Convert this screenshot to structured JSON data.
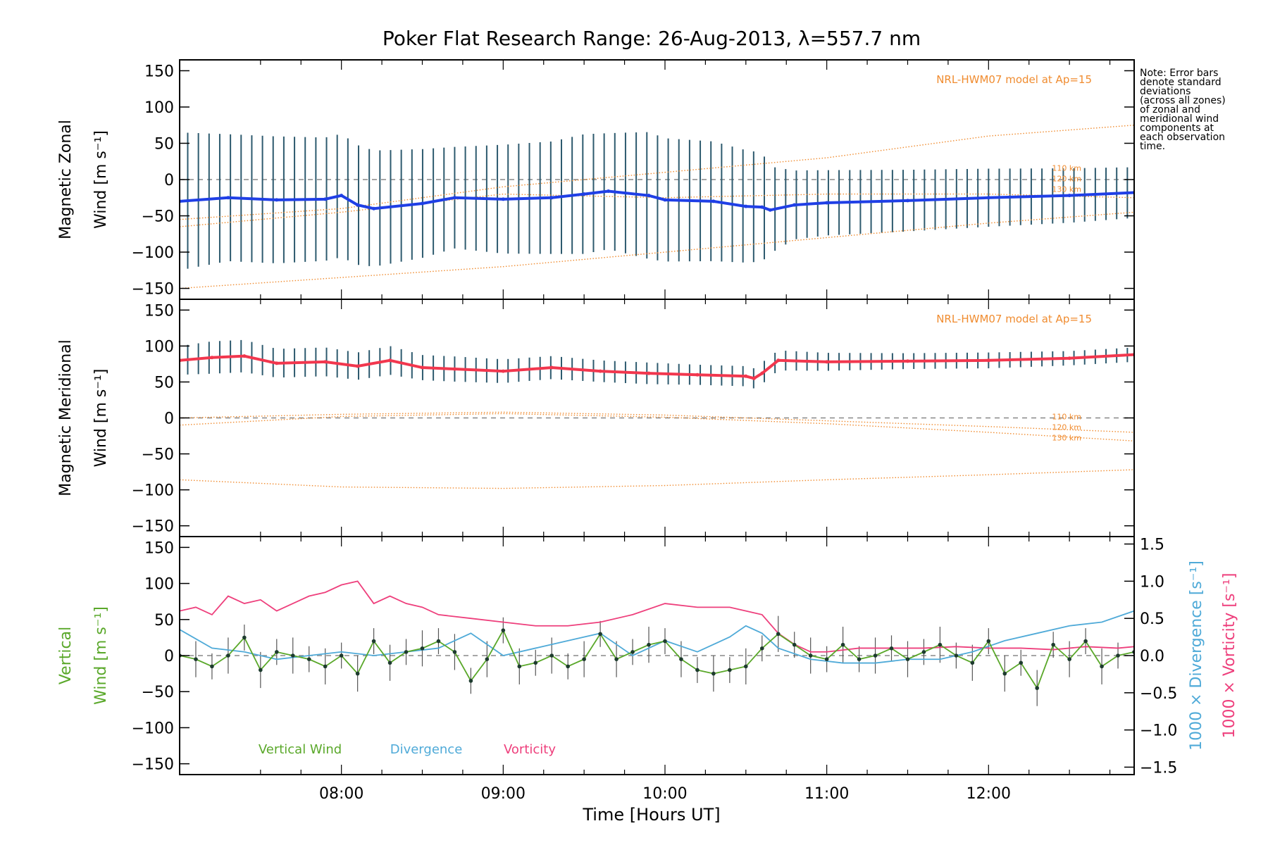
{
  "title": "Poker Flat Research Range: 26-Aug-2013, λ=557.7 nm",
  "note": [
    "Note: Error bars",
    "denote standard",
    "deviations",
    "(across all zones)",
    "of zonal and",
    "meridional wind",
    "components at",
    "each observation",
    "time."
  ],
  "xlabel": "Time [Hours UT]",
  "colors": {
    "zonal": "#1f3fe6",
    "meridional": "#f2374e",
    "vertical": "#5aa82a",
    "divergence": "#4faad8",
    "vorticity": "#ee3f7c",
    "model": "#f08c30",
    "errbar": "#2d5a6e"
  },
  "chart_data": [
    {
      "type": "line",
      "panel": "zonal",
      "ylabel": [
        "Magnetic Zonal",
        "Wind [m s⁻¹]"
      ],
      "ylim": [
        -165,
        165
      ],
      "yticks": [
        "150",
        "100",
        "50",
        "0",
        "−50",
        "−100",
        "−150"
      ],
      "xlim": [
        7.0,
        12.9
      ],
      "xtick_labels": [
        "08:00",
        "09:00",
        "10:00",
        "11:00",
        "12:00"
      ],
      "model_label": "NRL-HWM07 model at Ap=15",
      "model_heights": [
        "110 km",
        "120 km",
        "130 km"
      ],
      "series": [
        {
          "name": "Zonal wind",
          "x": [
            7.0,
            7.3,
            7.6,
            7.9,
            8.0,
            8.1,
            8.2,
            8.5,
            8.7,
            9.0,
            9.3,
            9.5,
            9.65,
            9.9,
            10.0,
            10.3,
            10.5,
            10.6,
            10.65,
            10.8,
            11.0,
            11.5,
            12.0,
            12.5,
            12.9
          ],
          "y": [
            -30,
            -25,
            -28,
            -27,
            -22,
            -35,
            -40,
            -33,
            -25,
            -27,
            -25,
            -20,
            -16,
            -22,
            -28,
            -30,
            -37,
            -38,
            -42,
            -35,
            -32,
            -29,
            -25,
            -22,
            -18
          ],
          "err": [
            190,
            175,
            175,
            170,
            170,
            165,
            160,
            150,
            140,
            150,
            155,
            165,
            160,
            175,
            170,
            165,
            155,
            150,
            120,
            95,
            90,
            85,
            80,
            75,
            70
          ]
        }
      ]
    },
    {
      "type": "line",
      "panel": "meridional",
      "ylabel": [
        "Magnetic Meridional",
        "Wind [m s⁻¹]"
      ],
      "ylim": [
        -165,
        165
      ],
      "yticks": [
        "150",
        "100",
        "50",
        "0",
        "−50",
        "−100",
        "−150"
      ],
      "xlim": [
        7.0,
        12.9
      ],
      "model_label": "NRL-HWM07 model at Ap=15",
      "model_heights": [
        "110 km",
        "120 km",
        "130 km"
      ],
      "series": [
        {
          "name": "Meridional wind",
          "x": [
            7.0,
            7.2,
            7.4,
            7.6,
            7.9,
            8.1,
            8.3,
            8.5,
            8.7,
            9.0,
            9.3,
            9.6,
            9.9,
            10.2,
            10.5,
            10.55,
            10.6,
            10.7,
            11.0,
            11.5,
            12.0,
            12.5,
            12.9
          ],
          "y": [
            80,
            84,
            86,
            76,
            78,
            72,
            80,
            70,
            68,
            65,
            70,
            65,
            62,
            60,
            58,
            55,
            62,
            80,
            78,
            79,
            80,
            83,
            88
          ],
          "err": [
            40,
            45,
            45,
            40,
            40,
            38,
            40,
            35,
            35,
            33,
            32,
            30,
            30,
            28,
            28,
            28,
            30,
            28,
            25,
            22,
            22,
            20,
            20
          ]
        },
        {
          "name": "Model 110 km",
          "x": [
            7.0,
            8.0,
            9.0,
            10.0,
            11.0,
            12.0,
            12.9
          ],
          "y": [
            0,
            5,
            8,
            4,
            -4,
            -12,
            -20
          ]
        },
        {
          "name": "Model 120 km",
          "x": [
            7.0,
            8.0,
            9.0,
            10.0,
            11.0,
            12.0,
            12.9
          ],
          "y": [
            -10,
            2,
            6,
            1,
            -8,
            -20,
            -32
          ]
        },
        {
          "name": "Model 130 km",
          "x": [
            7.0,
            8.0,
            9.0,
            10.0,
            11.0,
            12.0,
            12.9
          ],
          "y": [
            -86,
            -96,
            -98,
            -94,
            -86,
            -79,
            -72
          ]
        }
      ]
    },
    {
      "type": "line",
      "panel": "vertical",
      "ylabel": [
        "Vertical",
        "Wind [m s⁻¹]"
      ],
      "ylim": [
        -165,
        165
      ],
      "yticks": [
        "150",
        "100",
        "50",
        "0",
        "−50",
        "−100",
        "−150"
      ],
      "y2lim": [
        -1.6,
        1.6
      ],
      "y2ticks": [
        "1.5",
        "1.0",
        "0.5",
        "0.0",
        "−0.5",
        "−1.0",
        "−1.5"
      ],
      "y2label_div": "1000 × Divergence [s⁻¹]",
      "y2label_vor": "1000 × Vorticity [s⁻¹]",
      "xlim": [
        7.0,
        12.9
      ],
      "xtick_labels": [
        "08:00",
        "09:00",
        "10:00",
        "11:00",
        "12:00"
      ],
      "legend": [
        "Vertical Wind",
        "Divergence",
        "Vorticity"
      ],
      "series": [
        {
          "name": "Vertical Wind",
          "x": [
            7.0,
            7.1,
            7.2,
            7.3,
            7.4,
            7.5,
            7.6,
            7.7,
            7.8,
            7.9,
            8.0,
            8.1,
            8.2,
            8.3,
            8.4,
            8.5,
            8.6,
            8.7,
            8.8,
            8.9,
            9.0,
            9.1,
            9.2,
            9.3,
            9.4,
            9.5,
            9.6,
            9.7,
            9.8,
            9.9,
            10.0,
            10.1,
            10.2,
            10.3,
            10.4,
            10.5,
            10.6,
            10.7,
            10.8,
            10.9,
            11.0,
            11.1,
            11.2,
            11.3,
            11.4,
            11.5,
            11.6,
            11.7,
            11.8,
            11.9,
            12.0,
            12.1,
            12.2,
            12.3,
            12.4,
            12.5,
            12.6,
            12.7,
            12.8,
            12.9
          ],
          "y": [
            0,
            -5,
            -15,
            0,
            25,
            -20,
            5,
            0,
            -5,
            -15,
            0,
            -25,
            20,
            -10,
            5,
            10,
            20,
            5,
            -35,
            -5,
            35,
            -15,
            -10,
            0,
            -15,
            -5,
            30,
            -5,
            5,
            15,
            20,
            -5,
            -20,
            -25,
            -20,
            -15,
            10,
            30,
            15,
            0,
            -5,
            15,
            -5,
            0,
            10,
            -5,
            5,
            15,
            0,
            -10,
            20,
            -25,
            -10,
            -45,
            15,
            -5,
            20,
            -15,
            0,
            5
          ]
        },
        {
          "name": "Divergence",
          "x": [
            7.0,
            7.2,
            7.4,
            7.6,
            7.8,
            8.0,
            8.2,
            8.4,
            8.6,
            8.8,
            9.0,
            9.2,
            9.4,
            9.6,
            9.8,
            10.0,
            10.2,
            10.4,
            10.5,
            10.6,
            10.7,
            10.9,
            11.1,
            11.3,
            11.5,
            11.7,
            11.9,
            12.1,
            12.3,
            12.5,
            12.7,
            12.9
          ],
          "y": [
            0.35,
            0.1,
            0.05,
            -0.05,
            0.0,
            0.05,
            0.0,
            0.05,
            0.1,
            0.3,
            0.0,
            0.1,
            0.2,
            0.3,
            0.0,
            0.2,
            0.05,
            0.25,
            0.4,
            0.3,
            0.1,
            -0.05,
            -0.1,
            -0.1,
            -0.05,
            -0.05,
            0.05,
            0.2,
            0.3,
            0.4,
            0.45,
            0.6
          ]
        },
        {
          "name": "Vorticity",
          "x": [
            7.0,
            7.1,
            7.2,
            7.3,
            7.4,
            7.5,
            7.6,
            7.7,
            7.8,
            7.9,
            8.0,
            8.1,
            8.2,
            8.3,
            8.4,
            8.5,
            8.6,
            8.8,
            9.0,
            9.2,
            9.4,
            9.6,
            9.8,
            10.0,
            10.2,
            10.4,
            10.5,
            10.6,
            10.7,
            10.8,
            10.9,
            11.0,
            11.2,
            11.4,
            11.6,
            11.8,
            12.0,
            12.2,
            12.4,
            12.6,
            12.8,
            12.9
          ],
          "y": [
            0.6,
            0.65,
            0.55,
            0.8,
            0.7,
            0.75,
            0.6,
            0.7,
            0.8,
            0.85,
            0.95,
            1.0,
            0.7,
            0.8,
            0.7,
            0.65,
            0.55,
            0.5,
            0.45,
            0.4,
            0.4,
            0.45,
            0.55,
            0.7,
            0.65,
            0.65,
            0.6,
            0.55,
            0.3,
            0.15,
            0.05,
            0.05,
            0.1,
            0.1,
            0.1,
            0.12,
            0.1,
            0.1,
            0.08,
            0.12,
            0.1,
            0.12
          ]
        }
      ]
    }
  ]
}
